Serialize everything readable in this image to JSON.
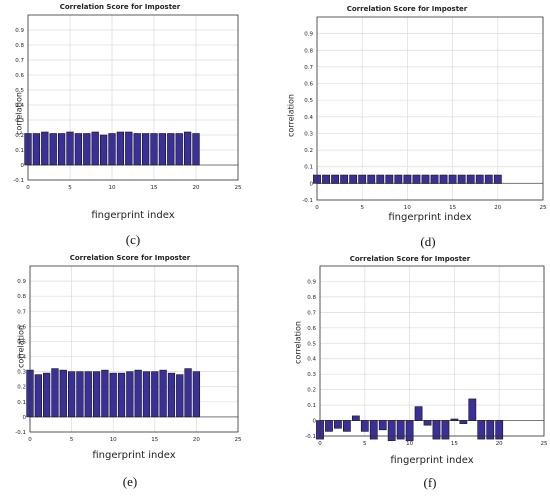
{
  "chart_data": [
    {
      "id": "c",
      "type": "bar",
      "title": "Correlation Score for Imposter",
      "xlabel": "fingerprint index",
      "ylabel": "correlation",
      "caption": "(c)",
      "x": [
        0,
        1,
        2,
        3,
        4,
        5,
        6,
        7,
        8,
        9,
        10,
        11,
        12,
        13,
        14,
        15,
        16,
        17,
        18,
        19,
        20
      ],
      "values": [
        0.21,
        0.21,
        0.22,
        0.21,
        0.21,
        0.22,
        0.21,
        0.21,
        0.22,
        0.2,
        0.21,
        0.22,
        0.22,
        0.21,
        0.21,
        0.21,
        0.21,
        0.21,
        0.21,
        0.22,
        0.21
      ],
      "xlim": [
        0,
        25
      ],
      "ylim": [
        -0.1,
        1
      ],
      "xticks": [
        "0",
        "5",
        "10",
        "15",
        "20",
        "25"
      ],
      "yticks": [
        "-0.1",
        "0",
        "0.1",
        "0.2",
        "0.3",
        "0.4",
        "0.5",
        "0.6",
        "0.7",
        "0.8",
        "0.9"
      ],
      "grid": true,
      "bar_color": "#3b2f9a"
    },
    {
      "id": "d",
      "type": "bar",
      "title": "Correlation Score for Imposter",
      "xlabel": "fingerprint index",
      "ylabel": "correlation",
      "caption": "(d)",
      "x": [
        0,
        1,
        2,
        3,
        4,
        5,
        6,
        7,
        8,
        9,
        10,
        11,
        12,
        13,
        14,
        15,
        16,
        17,
        18,
        19,
        20
      ],
      "values": [
        0.05,
        0.05,
        0.05,
        0.05,
        0.05,
        0.05,
        0.05,
        0.05,
        0.05,
        0.05,
        0.05,
        0.05,
        0.05,
        0.05,
        0.05,
        0.05,
        0.05,
        0.05,
        0.05,
        0.05,
        0.05
      ],
      "xlim": [
        0,
        25
      ],
      "ylim": [
        -0.1,
        1
      ],
      "xticks": [
        "0",
        "5",
        "10",
        "15",
        "20",
        "25"
      ],
      "yticks": [
        "-0.1",
        "0",
        "0.1",
        "0.2",
        "0.3",
        "0.4",
        "0.5",
        "0.6",
        "0.7",
        "0.8",
        "0.9"
      ],
      "grid": true,
      "bar_color": "#3b2f9a"
    },
    {
      "id": "e",
      "type": "bar",
      "title": "Correlation Score for Imposter",
      "xlabel": "fingerprint index",
      "ylabel": "correlation",
      "caption": "(e)",
      "x": [
        0,
        1,
        2,
        3,
        4,
        5,
        6,
        7,
        8,
        9,
        10,
        11,
        12,
        13,
        14,
        15,
        16,
        17,
        18,
        19,
        20
      ],
      "values": [
        0.31,
        0.28,
        0.29,
        0.32,
        0.31,
        0.3,
        0.3,
        0.3,
        0.3,
        0.31,
        0.29,
        0.29,
        0.3,
        0.31,
        0.3,
        0.3,
        0.31,
        0.29,
        0.28,
        0.32,
        0.3
      ],
      "xlim": [
        0,
        25
      ],
      "ylim": [
        -0.1,
        1
      ],
      "xticks": [
        "0",
        "5",
        "10",
        "15",
        "20",
        "25"
      ],
      "yticks": [
        "-0.1",
        "0",
        "0.1",
        "0.2",
        "0.3",
        "0.4",
        "0.5",
        "0.6",
        "0.7",
        "0.8",
        "0.9"
      ],
      "grid": true,
      "bar_color": "#3b2f9a"
    },
    {
      "id": "f",
      "type": "bar",
      "title": "Correlation Score for Imposter",
      "xlabel": "fingerprint index",
      "ylabel": "correlation",
      "caption": "(f)",
      "x": [
        0,
        1,
        2,
        3,
        4,
        5,
        6,
        7,
        8,
        9,
        10,
        11,
        12,
        13,
        14,
        15,
        16,
        17,
        18,
        19,
        20
      ],
      "values": [
        -0.12,
        -0.07,
        -0.05,
        -0.07,
        0.03,
        -0.07,
        -0.12,
        -0.06,
        -0.13,
        -0.12,
        -0.13,
        0.09,
        -0.03,
        -0.12,
        -0.12,
        0.01,
        -0.02,
        0.14,
        -0.12,
        -0.12,
        -0.12
      ],
      "xlim": [
        0,
        25
      ],
      "ylim": [
        -0.1,
        1
      ],
      "xticks": [
        "0",
        "5",
        "10",
        "15",
        "20",
        "25"
      ],
      "yticks": [
        "-0.1",
        "0",
        "0.1",
        "0.2",
        "0.3",
        "0.4",
        "0.5",
        "0.6",
        "0.7",
        "0.8",
        "0.9"
      ],
      "grid": true,
      "bar_color": "#3b2f9a"
    }
  ]
}
